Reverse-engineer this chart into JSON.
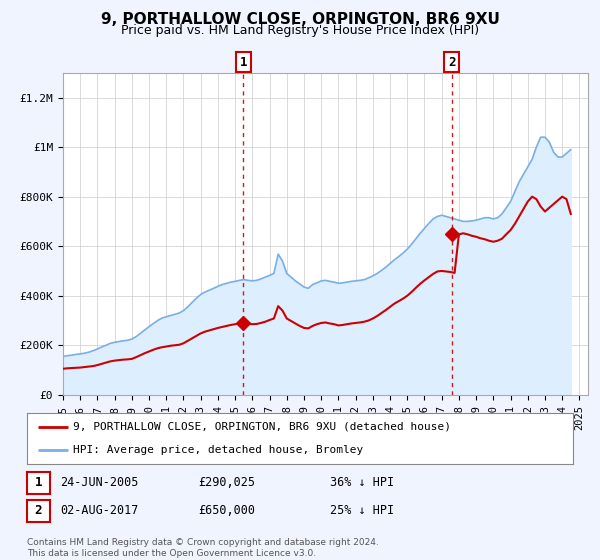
{
  "title": "9, PORTHALLOW CLOSE, ORPINGTON, BR6 9XU",
  "subtitle": "Price paid vs. HM Land Registry's House Price Index (HPI)",
  "ylim": [
    0,
    1300000
  ],
  "yticks": [
    0,
    200000,
    400000,
    600000,
    800000,
    1000000,
    1200000
  ],
  "ytick_labels": [
    "£0",
    "£200K",
    "£400K",
    "£600K",
    "£800K",
    "£1M",
    "£1.2M"
  ],
  "xlim_start": 1995.0,
  "xlim_end": 2025.5,
  "bg_color": "#f0f4ff",
  "plot_bg_color": "#ffffff",
  "red_line_color": "#cc0000",
  "blue_line_color": "#7aaee8",
  "blue_fill_color": "#ddeeff",
  "marker1_x": 2005.484,
  "marker1_y": 290025,
  "marker2_x": 2017.585,
  "marker2_y": 650000,
  "vline1_x": 2005.484,
  "vline2_x": 2017.585,
  "legend_label_red": "9, PORTHALLOW CLOSE, ORPINGTON, BR6 9XU (detached house)",
  "legend_label_blue": "HPI: Average price, detached house, Bromley",
  "annotation1_num": "1",
  "annotation2_num": "2",
  "table_row1": [
    "1",
    "24-JUN-2005",
    "£290,025",
    "36% ↓ HPI"
  ],
  "table_row2": [
    "2",
    "02-AUG-2017",
    "£650,000",
    "25% ↓ HPI"
  ],
  "footer1": "Contains HM Land Registry data © Crown copyright and database right 2024.",
  "footer2": "This data is licensed under the Open Government Licence v3.0.",
  "hpi_data_x": [
    1995.0,
    1995.25,
    1995.5,
    1995.75,
    1996.0,
    1996.25,
    1996.5,
    1996.75,
    1997.0,
    1997.25,
    1997.5,
    1997.75,
    1998.0,
    1998.25,
    1998.5,
    1998.75,
    1999.0,
    1999.25,
    1999.5,
    1999.75,
    2000.0,
    2000.25,
    2000.5,
    2000.75,
    2001.0,
    2001.25,
    2001.5,
    2001.75,
    2002.0,
    2002.25,
    2002.5,
    2002.75,
    2003.0,
    2003.25,
    2003.5,
    2003.75,
    2004.0,
    2004.25,
    2004.5,
    2004.75,
    2005.0,
    2005.25,
    2005.5,
    2005.75,
    2006.0,
    2006.25,
    2006.5,
    2006.75,
    2007.0,
    2007.25,
    2007.5,
    2007.75,
    2008.0,
    2008.25,
    2008.5,
    2008.75,
    2009.0,
    2009.25,
    2009.5,
    2009.75,
    2010.0,
    2010.25,
    2010.5,
    2010.75,
    2011.0,
    2011.25,
    2011.5,
    2011.75,
    2012.0,
    2012.25,
    2012.5,
    2012.75,
    2013.0,
    2013.25,
    2013.5,
    2013.75,
    2014.0,
    2014.25,
    2014.5,
    2014.75,
    2015.0,
    2015.25,
    2015.5,
    2015.75,
    2016.0,
    2016.25,
    2016.5,
    2016.75,
    2017.0,
    2017.25,
    2017.5,
    2017.75,
    2018.0,
    2018.25,
    2018.5,
    2018.75,
    2019.0,
    2019.25,
    2019.5,
    2019.75,
    2020.0,
    2020.25,
    2020.5,
    2020.75,
    2021.0,
    2021.25,
    2021.5,
    2021.75,
    2022.0,
    2022.25,
    2022.5,
    2022.75,
    2023.0,
    2023.25,
    2023.5,
    2023.75,
    2024.0,
    2024.25,
    2024.5
  ],
  "hpi_data_y": [
    155000,
    158000,
    160000,
    163000,
    165000,
    168000,
    172000,
    178000,
    185000,
    193000,
    200000,
    208000,
    212000,
    215000,
    218000,
    220000,
    225000,
    235000,
    248000,
    262000,
    275000,
    288000,
    300000,
    310000,
    315000,
    320000,
    325000,
    330000,
    340000,
    355000,
    373000,
    390000,
    405000,
    415000,
    422000,
    430000,
    438000,
    445000,
    450000,
    455000,
    458000,
    462000,
    465000,
    462000,
    460000,
    462000,
    468000,
    475000,
    482000,
    490000,
    568000,
    540000,
    490000,
    475000,
    460000,
    448000,
    435000,
    430000,
    445000,
    452000,
    460000,
    462000,
    458000,
    455000,
    450000,
    452000,
    455000,
    458000,
    460000,
    462000,
    465000,
    472000,
    480000,
    490000,
    502000,
    515000,
    530000,
    545000,
    558000,
    572000,
    588000,
    608000,
    630000,
    652000,
    672000,
    692000,
    710000,
    720000,
    725000,
    720000,
    715000,
    710000,
    705000,
    700000,
    700000,
    702000,
    705000,
    710000,
    715000,
    715000,
    710000,
    715000,
    730000,
    755000,
    780000,
    820000,
    860000,
    890000,
    920000,
    950000,
    1000000,
    1040000,
    1040000,
    1020000,
    980000,
    960000,
    960000,
    975000,
    990000
  ],
  "red_data_x": [
    1995.0,
    1995.25,
    1995.5,
    1995.75,
    1996.0,
    1996.25,
    1996.5,
    1996.75,
    1997.0,
    1997.25,
    1997.5,
    1997.75,
    1998.0,
    1998.25,
    1998.5,
    1998.75,
    1999.0,
    1999.25,
    1999.5,
    1999.75,
    2000.0,
    2000.25,
    2000.5,
    2000.75,
    2001.0,
    2001.25,
    2001.5,
    2001.75,
    2002.0,
    2002.25,
    2002.5,
    2002.75,
    2003.0,
    2003.25,
    2003.5,
    2003.75,
    2004.0,
    2004.25,
    2004.5,
    2004.75,
    2005.0,
    2005.25,
    2005.5,
    2005.75,
    2006.0,
    2006.25,
    2006.5,
    2006.75,
    2007.0,
    2007.25,
    2007.5,
    2007.75,
    2008.0,
    2008.25,
    2008.5,
    2008.75,
    2009.0,
    2009.25,
    2009.5,
    2009.75,
    2010.0,
    2010.25,
    2010.5,
    2010.75,
    2011.0,
    2011.25,
    2011.5,
    2011.75,
    2012.0,
    2012.25,
    2012.5,
    2012.75,
    2013.0,
    2013.25,
    2013.5,
    2013.75,
    2014.0,
    2014.25,
    2014.5,
    2014.75,
    2015.0,
    2015.25,
    2015.5,
    2015.75,
    2016.0,
    2016.25,
    2016.5,
    2016.75,
    2017.0,
    2017.25,
    2017.5,
    2017.75,
    2018.0,
    2018.25,
    2018.5,
    2018.75,
    2019.0,
    2019.25,
    2019.5,
    2019.75,
    2020.0,
    2020.25,
    2020.5,
    2020.75,
    2021.0,
    2021.25,
    2021.5,
    2021.75,
    2022.0,
    2022.25,
    2022.5,
    2022.75,
    2023.0,
    2023.25,
    2023.5,
    2023.75,
    2024.0,
    2024.25,
    2024.5
  ],
  "red_data_y": [
    105000,
    107000,
    108000,
    109000,
    110000,
    112000,
    114000,
    116000,
    120000,
    125000,
    130000,
    135000,
    138000,
    140000,
    142000,
    143000,
    145000,
    152000,
    160000,
    168000,
    175000,
    182000,
    188000,
    192000,
    195000,
    198000,
    200000,
    202000,
    208000,
    218000,
    228000,
    238000,
    248000,
    255000,
    260000,
    265000,
    270000,
    274000,
    278000,
    282000,
    285000,
    288000,
    290000,
    288000,
    285000,
    286000,
    290000,
    295000,
    302000,
    308000,
    358000,
    340000,
    308000,
    298000,
    288000,
    278000,
    270000,
    268000,
    278000,
    285000,
    290000,
    292000,
    288000,
    285000,
    280000,
    282000,
    285000,
    288000,
    290000,
    292000,
    295000,
    300000,
    308000,
    318000,
    330000,
    342000,
    355000,
    368000,
    378000,
    388000,
    400000,
    415000,
    432000,
    448000,
    462000,
    475000,
    488000,
    498000,
    500000,
    498000,
    496000,
    492000,
    648000,
    652000,
    648000,
    642000,
    638000,
    632000,
    628000,
    622000,
    618000,
    622000,
    630000,
    648000,
    665000,
    690000,
    720000,
    750000,
    780000,
    800000,
    790000,
    760000,
    740000,
    755000,
    770000,
    785000,
    800000,
    790000,
    730000
  ]
}
